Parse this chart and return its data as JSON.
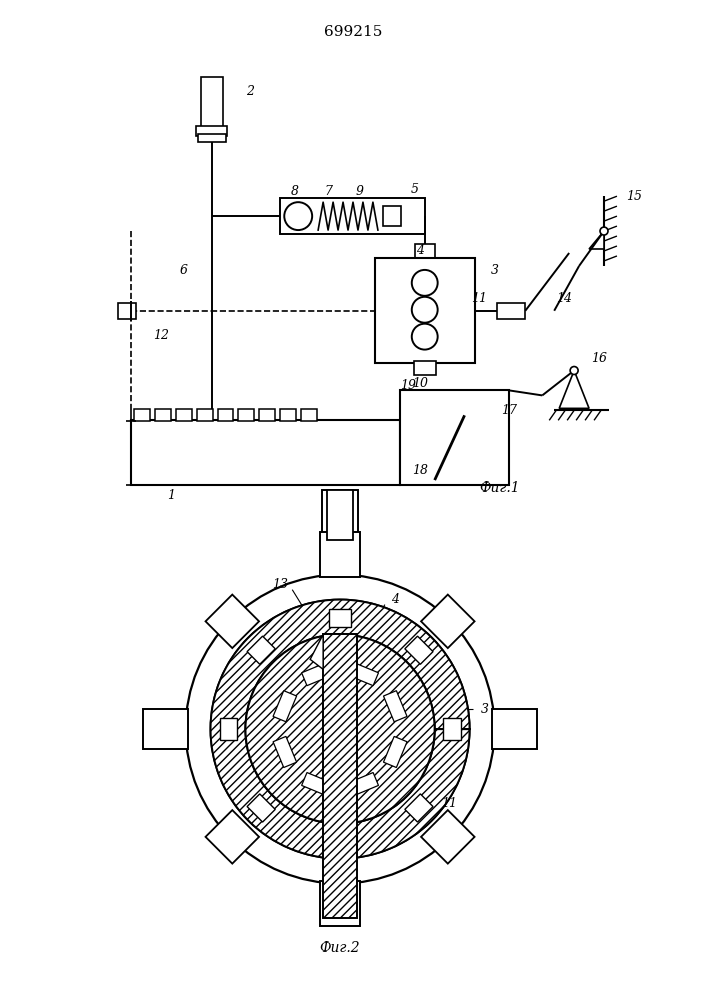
{
  "title": "699215",
  "fig1_label": "Фиг.1",
  "fig2_label": "Фиг.2",
  "bg_color": "#ffffff",
  "lc": "#000000",
  "fig_width": 7.07,
  "fig_height": 10.0
}
